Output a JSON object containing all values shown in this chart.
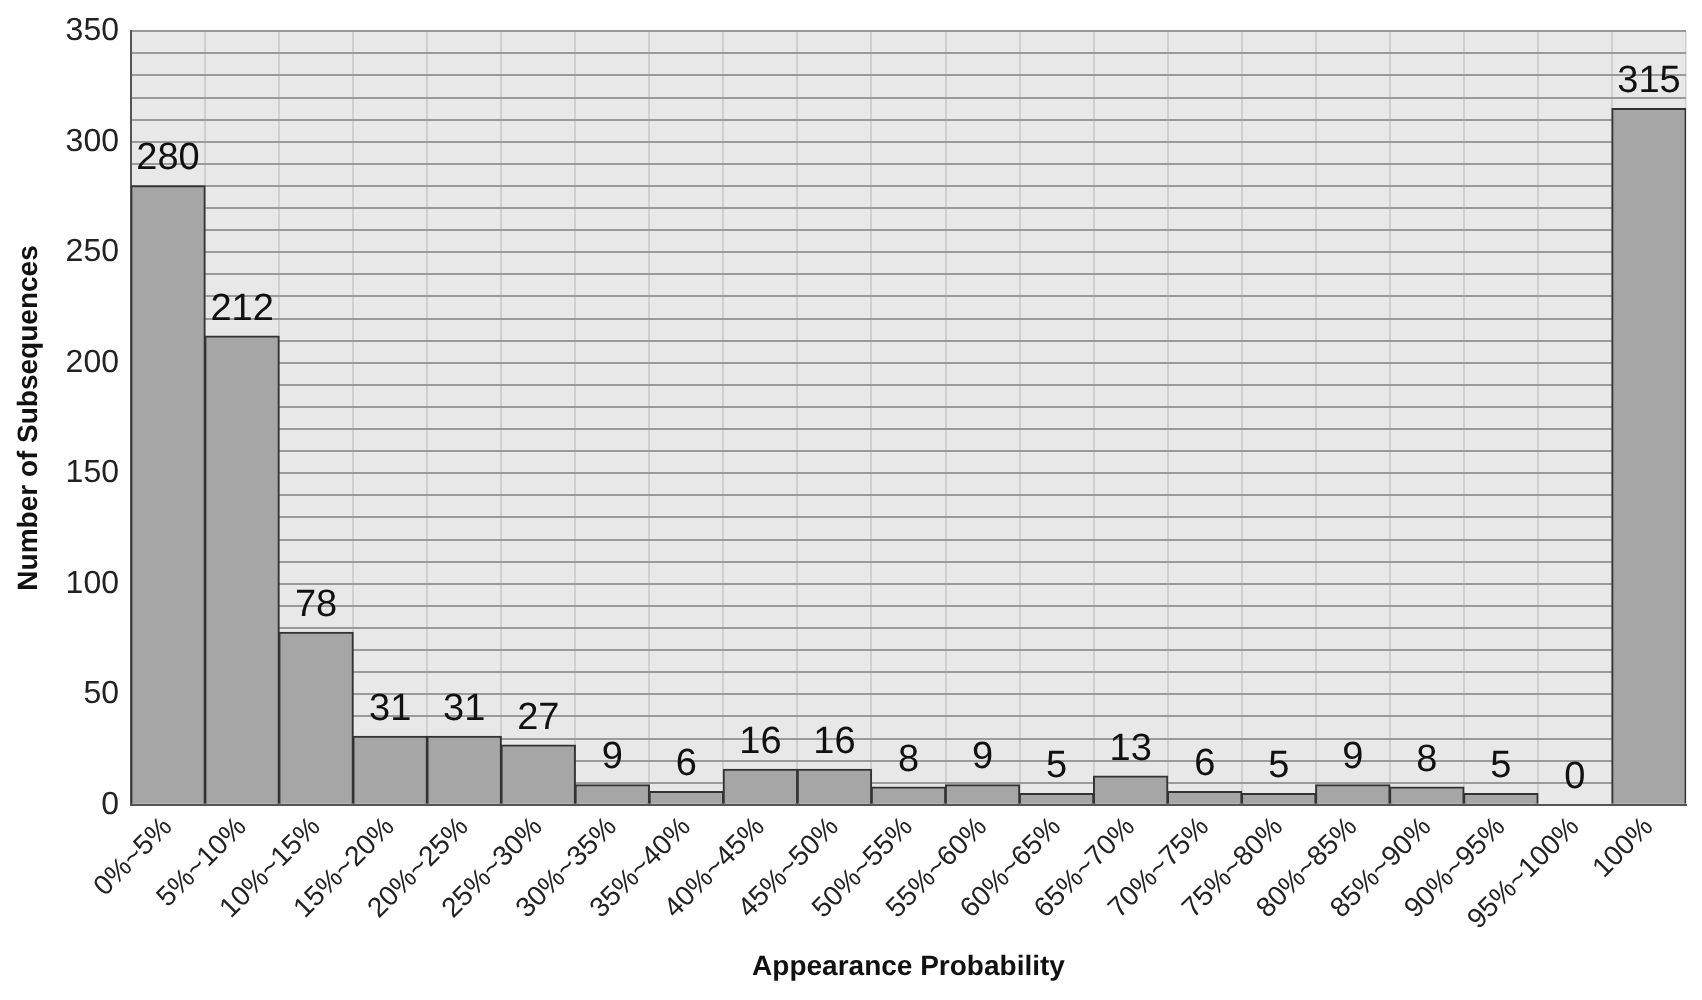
{
  "chart_data": {
    "type": "bar",
    "xlabel": "Appearance Probability",
    "ylabel": "Number of Subsequences",
    "categories": [
      "0%~5%",
      "5%~10%",
      "10%~15%",
      "15%~20%",
      "20%~25%",
      "25%~30%",
      "30%~35%",
      "35%~40%",
      "40%~45%",
      "45%~50%",
      "50%~55%",
      "55%~60%",
      "60%~65%",
      "65%~70%",
      "70%~75%",
      "75%~80%",
      "80%~85%",
      "85%~90%",
      "90%~95%",
      "95%~100%",
      "100%"
    ],
    "values": [
      280,
      212,
      78,
      31,
      31,
      27,
      9,
      6,
      16,
      16,
      8,
      9,
      5,
      13,
      6,
      5,
      9,
      8,
      5,
      0,
      315
    ],
    "color": "#a6a6a6",
    "ylim": [
      0,
      350
    ],
    "yticks": [
      0,
      {
        "value": 10,
        "label": null
      },
      {
        "value": 20,
        "label": null
      },
      {
        "value": 30,
        "label": null
      },
      {
        "value": 40,
        "label": null
      },
      50,
      {
        "value": 60,
        "label": null
      },
      {
        "value": 70,
        "label": null
      },
      {
        "value": 80,
        "label": null
      },
      {
        "value": 90,
        "label": null
      },
      100,
      {
        "value": 110,
        "label": null
      },
      {
        "value": 120,
        "label": null
      },
      {
        "value": 130,
        "label": null
      },
      {
        "value": 140,
        "label": null
      },
      150,
      {
        "value": 160,
        "label": null
      },
      {
        "value": 170,
        "label": null
      },
      {
        "value": 180,
        "label": null
      },
      {
        "value": 190,
        "label": null
      },
      200,
      {
        "value": 210,
        "label": null
      },
      {
        "value": 220,
        "label": null
      },
      {
        "value": 230,
        "label": null
      },
      {
        "value": 240,
        "label": null
      },
      250,
      {
        "value": 260,
        "label": null
      },
      {
        "value": 270,
        "label": null
      },
      {
        "value": 280,
        "label": null
      },
      {
        "value": 290,
        "label": null
      },
      300,
      {
        "value": 310,
        "label": null
      },
      {
        "value": 320,
        "label": null
      },
      {
        "value": 330,
        "label": null
      },
      {
        "value": 340,
        "label": null
      },
      350
    ],
    "grid": true,
    "data_labels": true
  }
}
